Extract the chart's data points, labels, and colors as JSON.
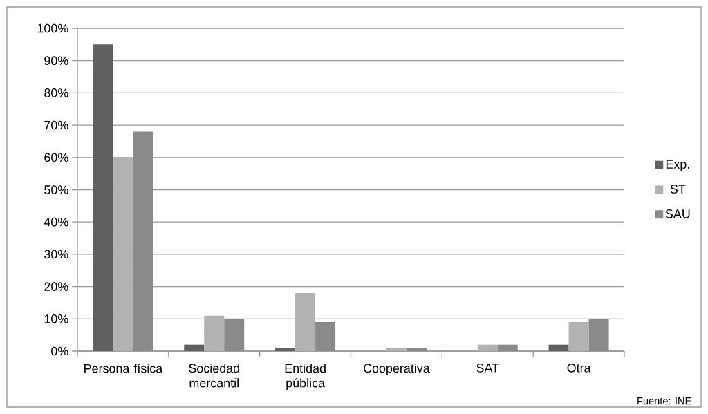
{
  "chart_data": {
    "type": "bar",
    "categories": [
      "Persona física",
      "Sociedad mercantil",
      "Entidad pública",
      "Cooperativa",
      "SAT",
      "Otra"
    ],
    "series": [
      {
        "name": "Exp.",
        "color": "#606060",
        "values": [
          95,
          2,
          1,
          0,
          0,
          2
        ]
      },
      {
        "name": "ST",
        "color": "#b2b2b2",
        "values": [
          60,
          11,
          18,
          1,
          2,
          9
        ]
      },
      {
        "name": "SAU",
        "color": "#8a8a8a",
        "values": [
          68,
          10,
          9,
          1,
          2,
          10
        ]
      }
    ],
    "ylim": [
      0,
      100
    ],
    "yticks": [
      {
        "value": 0,
        "label": "0%"
      },
      {
        "value": 10,
        "label": "10%"
      },
      {
        "value": 20,
        "label": "20%"
      },
      {
        "value": 30,
        "label": "30%"
      },
      {
        "value": 40,
        "label": "40%"
      },
      {
        "value": 50,
        "label": "50%"
      },
      {
        "value": 60,
        "label": "60%"
      },
      {
        "value": 70,
        "label": "70%"
      },
      {
        "value": 80,
        "label": "80%"
      },
      {
        "value": 90,
        "label": "90%"
      },
      {
        "value": 100,
        "label": "100%"
      }
    ],
    "grid": "y",
    "legend": "right",
    "annotations": [
      "Fuente: INE"
    ]
  }
}
